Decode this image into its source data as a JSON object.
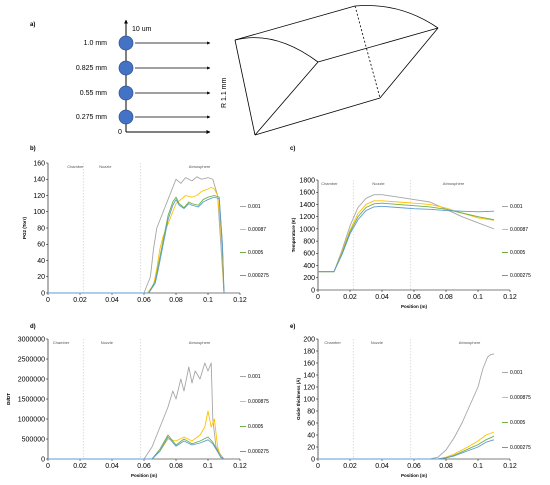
{
  "diagram": {
    "panel_label": "a)",
    "radial_labels": [
      "1.0 mm",
      "0.825 mm",
      "0.55 mm",
      "0.275 mm"
    ],
    "origin_label": "0",
    "top_label": "10 um",
    "side_label": "R 1.1 mm",
    "colors": {
      "circle": "#4472c4",
      "circle_stroke": "#2f528f"
    }
  },
  "series_colors": [
    "#a6a6a6",
    "#ffc000",
    "#70ad47",
    "#5b9bd5"
  ],
  "chart_data": [
    {
      "id": "b",
      "type": "line",
      "panel_label": "b)",
      "ylabel": "PO2 (Torr)",
      "xlabel": "",
      "xlim": [
        0,
        0.12
      ],
      "ylim": [
        0,
        160
      ],
      "xticks": [
        "0",
        "0.02",
        "0.04",
        "0.06",
        "0.08",
        "0.1",
        "0.12"
      ],
      "yticks": [
        "0",
        "20",
        "40",
        "60",
        "80",
        "100",
        "120",
        "140",
        "160"
      ],
      "regions": [
        "Chamber",
        "Nozzle",
        "Atmosphere"
      ],
      "legend": [
        "0.001",
        "0.00087",
        "0.0005",
        "0.000275"
      ],
      "series": [
        {
          "name": "0.001",
          "x": [
            0,
            0.06,
            0.064,
            0.066,
            0.068,
            0.07,
            0.072,
            0.075,
            0.078,
            0.08,
            0.083,
            0.086,
            0.09,
            0.093,
            0.096,
            0.1,
            0.103,
            0.106,
            0.108,
            0.11
          ],
          "y": [
            0,
            0,
            20,
            55,
            80,
            90,
            100,
            115,
            130,
            140,
            135,
            142,
            138,
            143,
            140,
            142,
            140,
            120,
            60,
            0
          ]
        },
        {
          "name": "0.00087",
          "x": [
            0,
            0.062,
            0.066,
            0.068,
            0.07,
            0.072,
            0.075,
            0.078,
            0.08,
            0.083,
            0.086,
            0.09,
            0.093,
            0.096,
            0.1,
            0.102,
            0.104,
            0.106,
            0.108,
            0.11
          ],
          "y": [
            0,
            0,
            10,
            30,
            55,
            70,
            85,
            100,
            110,
            115,
            120,
            118,
            120,
            125,
            128,
            130,
            128,
            120,
            80,
            0
          ]
        },
        {
          "name": "0.0005",
          "x": [
            0,
            0.063,
            0.067,
            0.069,
            0.072,
            0.075,
            0.078,
            0.08,
            0.082,
            0.085,
            0.088,
            0.09,
            0.094,
            0.097,
            0.1,
            0.104,
            0.107,
            0.109,
            0.11
          ],
          "y": [
            0,
            0,
            15,
            35,
            65,
            95,
            112,
            118,
            110,
            105,
            112,
            110,
            108,
            115,
            118,
            120,
            118,
            60,
            0
          ]
        },
        {
          "name": "0.000275",
          "x": [
            0,
            0.063,
            0.067,
            0.069,
            0.072,
            0.075,
            0.078,
            0.08,
            0.082,
            0.085,
            0.088,
            0.09,
            0.094,
            0.097,
            0.1,
            0.104,
            0.107,
            0.109,
            0.11
          ],
          "y": [
            0,
            0,
            12,
            30,
            60,
            90,
            108,
            115,
            108,
            104,
            110,
            108,
            106,
            112,
            115,
            118,
            116,
            60,
            0
          ]
        }
      ]
    },
    {
      "id": "c",
      "type": "line",
      "panel_label": "c)",
      "ylabel": "Temperature (K)",
      "xlabel": "Position (m)",
      "xlim": [
        0,
        0.12
      ],
      "ylim": [
        0,
        1800
      ],
      "xticks": [
        "0",
        "0.02",
        "0.04",
        "0.06",
        "0.08",
        "0.1",
        "0.12"
      ],
      "yticks": [
        "0",
        "200",
        "400",
        "600",
        "800",
        "1000",
        "1200",
        "1400",
        "1600",
        "1800"
      ],
      "regions": [
        "Chamber",
        "Nozzle",
        "Atmosphere"
      ],
      "legend": [
        "0.001",
        "0.00087",
        "0.0005",
        "0.000275"
      ],
      "series": [
        {
          "name": "0.001",
          "x": [
            0,
            0.01,
            0.015,
            0.02,
            0.025,
            0.03,
            0.035,
            0.04,
            0.05,
            0.06,
            0.07,
            0.08,
            0.09,
            0.1,
            0.11
          ],
          "y": [
            300,
            300,
            650,
            1050,
            1350,
            1500,
            1560,
            1560,
            1520,
            1480,
            1440,
            1320,
            1200,
            1100,
            1000
          ]
        },
        {
          "name": "0.00087",
          "x": [
            0,
            0.01,
            0.015,
            0.02,
            0.025,
            0.03,
            0.035,
            0.04,
            0.05,
            0.06,
            0.07,
            0.08,
            0.09,
            0.1,
            0.11
          ],
          "y": [
            300,
            300,
            620,
            980,
            1250,
            1400,
            1460,
            1460,
            1440,
            1420,
            1400,
            1340,
            1260,
            1180,
            1140
          ]
        },
        {
          "name": "0.0005",
          "x": [
            0,
            0.01,
            0.015,
            0.02,
            0.025,
            0.03,
            0.035,
            0.04,
            0.05,
            0.06,
            0.07,
            0.08,
            0.09,
            0.1,
            0.11
          ],
          "y": [
            300,
            300,
            600,
            950,
            1200,
            1350,
            1410,
            1420,
            1400,
            1380,
            1360,
            1320,
            1260,
            1200,
            1150
          ]
        },
        {
          "name": "0.000275",
          "x": [
            0,
            0.01,
            0.015,
            0.02,
            0.025,
            0.03,
            0.035,
            0.04,
            0.05,
            0.06,
            0.07,
            0.08,
            0.09,
            0.1,
            0.11
          ],
          "y": [
            300,
            300,
            580,
            920,
            1150,
            1300,
            1360,
            1370,
            1350,
            1330,
            1320,
            1300,
            1290,
            1280,
            1290
          ]
        }
      ]
    },
    {
      "id": "d",
      "type": "line",
      "panel_label": "d)",
      "ylabel": "DI/DT",
      "xlabel": "Position (m)",
      "xlim": [
        0,
        0.12
      ],
      "ylim": [
        0,
        3000000
      ],
      "xticks": [
        "0",
        "0.02",
        "0.04",
        "0.06",
        "0.08",
        "0.1",
        "0.12"
      ],
      "yticks": [
        "0",
        "500000",
        "1000000",
        "1500000",
        "2000000",
        "2500000",
        "3000000"
      ],
      "regions": [
        "Chamber",
        "Nozzle",
        "Atmosphere"
      ],
      "legend": [
        "0.001",
        "0.000875",
        "0.0005",
        "0.000275"
      ],
      "series": [
        {
          "name": "0.001",
          "x": [
            0,
            0.06,
            0.065,
            0.07,
            0.075,
            0.078,
            0.08,
            0.083,
            0.085,
            0.088,
            0.09,
            0.092,
            0.095,
            0.098,
            0.1,
            0.102,
            0.103,
            0.105,
            0.108,
            0.11
          ],
          "y": [
            0,
            0,
            300000,
            800000,
            1300000,
            1700000,
            1500000,
            2000000,
            1700000,
            2300000,
            1900000,
            2200000,
            2000000,
            2400000,
            2200000,
            2400000,
            1000000,
            300000,
            100000,
            0
          ]
        },
        {
          "name": "0.000875",
          "x": [
            0,
            0.065,
            0.07,
            0.075,
            0.08,
            0.085,
            0.09,
            0.095,
            0.098,
            0.1,
            0.102,
            0.104,
            0.106,
            0.108,
            0.11
          ],
          "y": [
            0,
            0,
            200000,
            500000,
            450000,
            550000,
            450000,
            600000,
            800000,
            1200000,
            800000,
            1000000,
            300000,
            50000,
            0
          ]
        },
        {
          "name": "0.0005",
          "x": [
            0,
            0.065,
            0.07,
            0.075,
            0.08,
            0.085,
            0.09,
            0.095,
            0.1,
            0.103,
            0.106,
            0.108,
            0.11
          ],
          "y": [
            0,
            0,
            250000,
            600000,
            350000,
            500000,
            380000,
            450000,
            550000,
            420000,
            200000,
            50000,
            0
          ]
        },
        {
          "name": "0.000275",
          "x": [
            0,
            0.065,
            0.07,
            0.075,
            0.08,
            0.085,
            0.09,
            0.095,
            0.1,
            0.103,
            0.106,
            0.108,
            0.11
          ],
          "y": [
            0,
            0,
            200000,
            550000,
            320000,
            450000,
            350000,
            400000,
            480000,
            380000,
            180000,
            40000,
            0
          ]
        }
      ]
    },
    {
      "id": "e",
      "type": "line",
      "panel_label": "e)",
      "ylabel": "Oxide thickness (Å)",
      "xlabel": "Position (m)",
      "xlim": [
        0,
        0.12
      ],
      "ylim": [
        0,
        200
      ],
      "xticks": [
        "0",
        "0.02",
        "0.04",
        "0.06",
        "0.08",
        "0.1",
        "0.12"
      ],
      "yticks": [
        "0",
        "20",
        "40",
        "60",
        "80",
        "100",
        "120",
        "140",
        "160",
        "180",
        "200"
      ],
      "regions": [
        "Chamber",
        "Nozzle",
        "Atmosphere"
      ],
      "legend": [
        "0.001",
        "0.000875",
        "0.0005",
        "0.000275"
      ],
      "series": [
        {
          "name": "0.001",
          "x": [
            0,
            0.07,
            0.075,
            0.08,
            0.085,
            0.09,
            0.095,
            0.1,
            0.103,
            0.106,
            0.108,
            0.11
          ],
          "y": [
            0,
            0,
            3,
            15,
            35,
            60,
            90,
            120,
            150,
            170,
            174,
            175
          ]
        },
        {
          "name": "0.000875",
          "x": [
            0,
            0.075,
            0.08,
            0.085,
            0.09,
            0.095,
            0.1,
            0.105,
            0.11
          ],
          "y": [
            0,
            0,
            3,
            8,
            15,
            22,
            30,
            40,
            45
          ]
        },
        {
          "name": "0.0005",
          "x": [
            0,
            0.075,
            0.08,
            0.085,
            0.09,
            0.095,
            0.1,
            0.105,
            0.11
          ],
          "y": [
            0,
            0,
            2,
            6,
            12,
            18,
            24,
            32,
            38
          ]
        },
        {
          "name": "0.000275",
          "x": [
            0,
            0.075,
            0.08,
            0.085,
            0.09,
            0.095,
            0.1,
            0.105,
            0.11
          ],
          "y": [
            0,
            0,
            2,
            5,
            10,
            15,
            20,
            28,
            32
          ]
        }
      ]
    }
  ]
}
